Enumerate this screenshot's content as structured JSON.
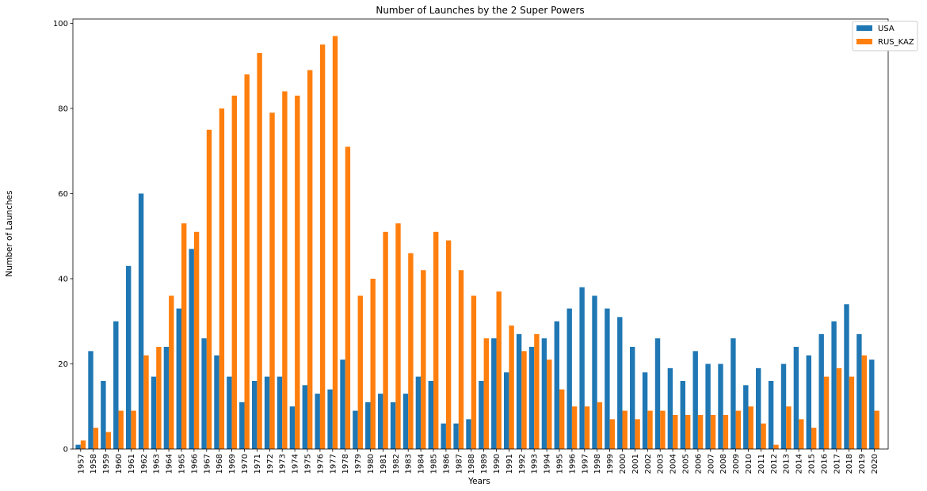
{
  "chart_data": {
    "type": "bar",
    "title": "Number of Launches by the 2 Super Powers",
    "xlabel": "Years",
    "ylabel": "Number of Launches",
    "ylim": [
      0,
      101
    ],
    "yticks": [
      0,
      20,
      40,
      60,
      80,
      100
    ],
    "grid": false,
    "legend_position": "top-right",
    "categories": [
      "1957",
      "1958",
      "1959",
      "1960",
      "1961",
      "1962",
      "1963",
      "1964",
      "1965",
      "1966",
      "1967",
      "1968",
      "1969",
      "1970",
      "1971",
      "1972",
      "1973",
      "1974",
      "1975",
      "1976",
      "1977",
      "1978",
      "1979",
      "1980",
      "1981",
      "1982",
      "1983",
      "1984",
      "1985",
      "1986",
      "1987",
      "1988",
      "1989",
      "1990",
      "1991",
      "1992",
      "1993",
      "1994",
      "1995",
      "1996",
      "1997",
      "1998",
      "1999",
      "2000",
      "2001",
      "2002",
      "2003",
      "2004",
      "2005",
      "2006",
      "2007",
      "2008",
      "2009",
      "2010",
      "2011",
      "2012",
      "2013",
      "2014",
      "2015",
      "2016",
      "2017",
      "2018",
      "2019",
      "2020"
    ],
    "series": [
      {
        "name": "USA",
        "color": "#1f77b4",
        "values": [
          1,
          23,
          16,
          30,
          43,
          60,
          17,
          24,
          33,
          47,
          26,
          22,
          17,
          11,
          16,
          17,
          17,
          10,
          15,
          13,
          14,
          21,
          9,
          11,
          13,
          11,
          13,
          17,
          16,
          6,
          6,
          7,
          16,
          26,
          18,
          27,
          24,
          26,
          30,
          33,
          38,
          36,
          33,
          31,
          24,
          18,
          26,
          19,
          16,
          23,
          20,
          20,
          26,
          15,
          19,
          16,
          20,
          24,
          22,
          27,
          30,
          34,
          27,
          21
        ]
      },
      {
        "name": "RUS_KAZ",
        "color": "#ff7f0e",
        "values": [
          2,
          5,
          4,
          9,
          9,
          22,
          24,
          36,
          53,
          51,
          75,
          80,
          83,
          88,
          93,
          79,
          84,
          83,
          89,
          95,
          97,
          71,
          36,
          40,
          51,
          53,
          46,
          42,
          51,
          49,
          42,
          36,
          26,
          37,
          29,
          23,
          27,
          21,
          14,
          10,
          10,
          11,
          7,
          9,
          7,
          9,
          9,
          8,
          8,
          8,
          8,
          8,
          9,
          10,
          6,
          1,
          10,
          7,
          5,
          17,
          19,
          17,
          22,
          9
        ]
      }
    ]
  }
}
